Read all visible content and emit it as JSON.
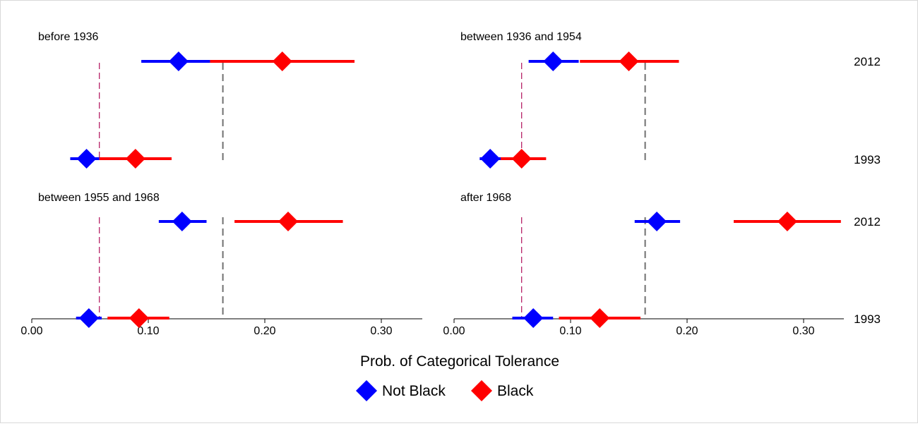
{
  "chart_data": {
    "type": "scatter",
    "subtype": "dot-and-whisker (point estimate with interval)",
    "xlabel": "Prob. of Categorical Tolerance",
    "xlim": [
      0,
      0.335
    ],
    "xticks": [
      0.0,
      0.1,
      0.2,
      0.3
    ],
    "xtick_labels": [
      "0.00",
      "0.10",
      "0.20",
      "0.30"
    ],
    "grid": false,
    "legend_position": "bottom-center",
    "colors": {
      "Not Black": "#0000ff",
      "Black": "#ff0000",
      "reference_a": "#b0105a",
      "reference_b": "#707070"
    },
    "reference_lines": [
      {
        "x": 0.058,
        "style": "dashed",
        "color": "#b0105a"
      },
      {
        "x": 0.164,
        "style": "dashed",
        "color": "#707070"
      }
    ],
    "years": [
      "2012",
      "1993"
    ],
    "series": [
      {
        "name": "Not Black",
        "color": "#0000ff"
      },
      {
        "name": "Black",
        "color": "#ff0000"
      }
    ],
    "panels": [
      {
        "title": "before 1936",
        "points": [
          {
            "series": "Not Black",
            "year": "2012",
            "x": 0.126,
            "lo": 0.094,
            "hi": 0.153
          },
          {
            "series": "Black",
            "year": "2012",
            "x": 0.215,
            "lo": 0.153,
            "hi": 0.277
          },
          {
            "series": "Not Black",
            "year": "1993",
            "x": 0.047,
            "lo": 0.033,
            "hi": 0.058
          },
          {
            "series": "Black",
            "year": "1993",
            "x": 0.089,
            "lo": 0.058,
            "hi": 0.12
          }
        ]
      },
      {
        "title": "between 1936 and 1954",
        "points": [
          {
            "series": "Not Black",
            "year": "2012",
            "x": 0.085,
            "lo": 0.064,
            "hi": 0.107
          },
          {
            "series": "Black",
            "year": "2012",
            "x": 0.15,
            "lo": 0.108,
            "hi": 0.193
          },
          {
            "series": "Not Black",
            "year": "1993",
            "x": 0.031,
            "lo": 0.022,
            "hi": 0.04
          },
          {
            "series": "Black",
            "year": "1993",
            "x": 0.058,
            "lo": 0.04,
            "hi": 0.079
          }
        ]
      },
      {
        "title": "between 1955 and 1968",
        "points": [
          {
            "series": "Not Black",
            "year": "2012",
            "x": 0.129,
            "lo": 0.109,
            "hi": 0.15
          },
          {
            "series": "Black",
            "year": "2012",
            "x": 0.22,
            "lo": 0.174,
            "hi": 0.267
          },
          {
            "series": "Not Black",
            "year": "1993",
            "x": 0.049,
            "lo": 0.038,
            "hi": 0.06
          },
          {
            "series": "Black",
            "year": "1993",
            "x": 0.092,
            "lo": 0.065,
            "hi": 0.118
          }
        ]
      },
      {
        "title": "after 1968",
        "points": [
          {
            "series": "Not Black",
            "year": "2012",
            "x": 0.174,
            "lo": 0.155,
            "hi": 0.194
          },
          {
            "series": "Black",
            "year": "2012",
            "x": 0.286,
            "lo": 0.24,
            "hi": 0.332
          },
          {
            "series": "Not Black",
            "year": "1993",
            "x": 0.068,
            "lo": 0.05,
            "hi": 0.085
          },
          {
            "series": "Black",
            "year": "1993",
            "x": 0.125,
            "lo": 0.09,
            "hi": 0.16
          }
        ]
      }
    ]
  }
}
